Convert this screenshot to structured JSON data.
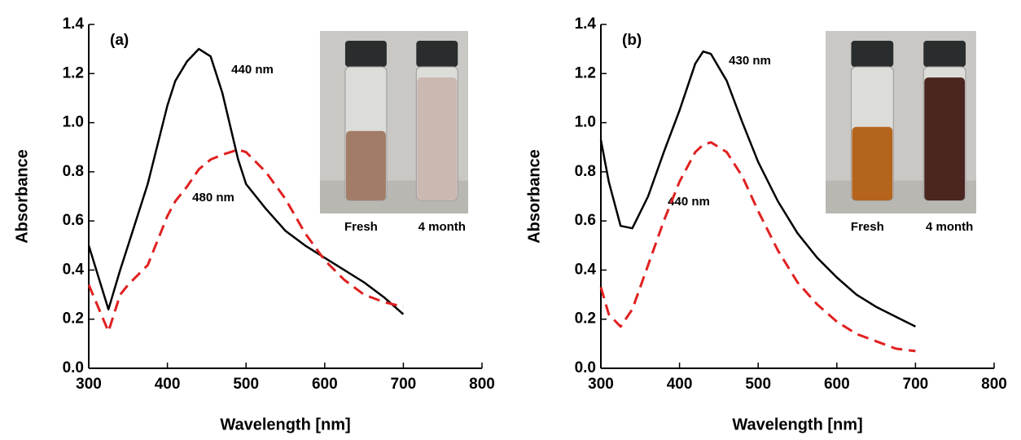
{
  "chart_data": [
    {
      "type": "line",
      "panel_label": "(a)",
      "x_label": "Wavelength [nm]",
      "y_label": "Absorbance",
      "annotations": [
        "440 nm",
        "480 nm"
      ],
      "inset_labels": [
        "Fresh",
        "4 month"
      ],
      "xlim": [
        300,
        800
      ],
      "xticks": [
        300,
        400,
        500,
        600,
        700,
        800
      ],
      "ylim": [
        0,
        1.4
      ],
      "yticks": [
        {
          "value": 0,
          "label": "0.0"
        },
        0.2,
        0.4,
        0.6,
        0.8,
        {
          "value": 1,
          "label": "1.0"
        },
        1.2,
        1.4
      ],
      "x": [
        300,
        325,
        340,
        350,
        375,
        400,
        410,
        425,
        440,
        455,
        470,
        490,
        500,
        525,
        550,
        575,
        600,
        625,
        650,
        675,
        700
      ],
      "series": [
        {
          "color": "#000000",
          "dashed": false,
          "values": [
            0.5,
            0.24,
            0.4,
            0.5,
            0.75,
            1.07,
            1.17,
            1.25,
            1.3,
            1.27,
            1.12,
            0.85,
            0.75,
            0.65,
            0.56,
            0.5,
            0.45,
            0.4,
            0.35,
            0.29,
            0.22
          ]
        },
        {
          "color": "#e02020",
          "dashed": true,
          "values": [
            0.34,
            0.15,
            0.3,
            0.34,
            0.42,
            0.62,
            0.68,
            0.74,
            0.81,
            0.85,
            0.87,
            0.89,
            0.88,
            0.8,
            0.69,
            0.55,
            0.44,
            0.36,
            0.3,
            0.27,
            0.25
          ]
        }
      ]
    },
    {
      "type": "line",
      "panel_label": "(b)",
      "x_label": "Wavelength [nm]",
      "y_label": "Absorbance",
      "annotations": [
        "430 nm",
        "440 nm"
      ],
      "inset_labels": [
        "Fresh",
        "4 month"
      ],
      "xlim": [
        300,
        800
      ],
      "xticks": [
        300,
        400,
        500,
        600,
        700,
        800
      ],
      "ylim": [
        0,
        1.4
      ],
      "yticks": [
        {
          "value": 0,
          "label": "0.0"
        },
        0.2,
        0.4,
        0.6,
        0.8,
        {
          "value": 1,
          "label": "1.0"
        },
        1.2,
        1.4
      ],
      "x": [
        300,
        310,
        325,
        340,
        360,
        380,
        400,
        420,
        430,
        440,
        460,
        480,
        500,
        525,
        550,
        575,
        600,
        625,
        650,
        675,
        700
      ],
      "series": [
        {
          "color": "#000000",
          "dashed": false,
          "values": [
            0.93,
            0.76,
            0.58,
            0.57,
            0.7,
            0.88,
            1.05,
            1.24,
            1.29,
            1.28,
            1.17,
            1.0,
            0.84,
            0.68,
            0.55,
            0.45,
            0.37,
            0.3,
            0.25,
            0.21,
            0.17
          ]
        },
        {
          "color": "#e02020",
          "dashed": true,
          "values": [
            0.33,
            0.22,
            0.17,
            0.24,
            0.42,
            0.6,
            0.76,
            0.88,
            0.91,
            0.92,
            0.88,
            0.78,
            0.64,
            0.48,
            0.35,
            0.26,
            0.19,
            0.14,
            0.11,
            0.08,
            0.07
          ]
        }
      ]
    }
  ]
}
